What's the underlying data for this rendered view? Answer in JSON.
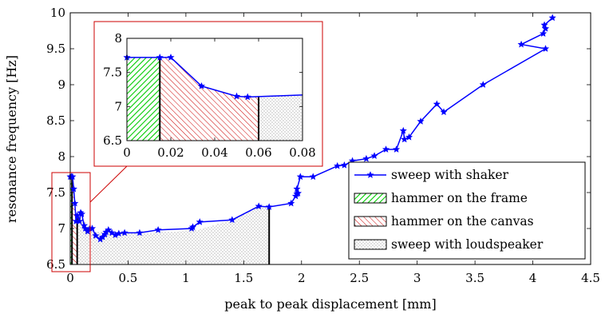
{
  "chart_data": {
    "type": "line",
    "xlabel": "peak to peak displacement [mm]",
    "ylabel": "resonance frequency [Hz]",
    "xlim": [
      0,
      4.5
    ],
    "ylim": [
      6.5,
      10
    ],
    "xticks": [
      0,
      0.5,
      1,
      1.5,
      2,
      2.5,
      3,
      3.5,
      4,
      4.5
    ],
    "yticks": [
      6.5,
      7,
      7.5,
      8,
      8.5,
      9,
      9.5,
      10
    ],
    "xtick_labels": [
      "0",
      "0.5",
      "1",
      "1.5",
      "2",
      "2.5",
      "3",
      "3.5",
      "4",
      "4.5"
    ],
    "ytick_labels": [
      "6.5",
      "7",
      "7.5",
      "8",
      "8.5",
      "9",
      "9.5",
      "10"
    ],
    "legend_position": "bottom-right",
    "legend": [
      {
        "label": "sweep with shaker",
        "kind": "line",
        "color": "#0000ff"
      },
      {
        "label": "hammer on the frame",
        "kind": "hatch-green"
      },
      {
        "label": "hammer on the canvas",
        "kind": "hatch-red"
      },
      {
        "label": "sweep with loudspeaker",
        "kind": "dots"
      }
    ],
    "colors": {
      "shaker": "#0000ff",
      "frame": "#00cc00",
      "canvas": "#cc0000",
      "loudspeaker": "#808080"
    },
    "shaker_series": {
      "x": [
        4.17,
        4.1,
        4.11,
        4.09,
        3.9,
        4.11,
        3.57,
        3.23,
        3.17,
        3.03,
        2.93,
        2.89,
        2.88,
        2.82,
        2.73,
        2.63,
        2.56,
        2.44,
        2.37,
        2.31,
        2.1,
        1.99,
        1.96,
        1.95,
        1.97,
        1.96,
        1.91,
        1.72,
        1.63,
        1.4,
        1.12,
        1.06,
        1.05,
        0.76,
        0.6,
        0.47,
        0.42,
        0.39,
        0.36,
        0.33,
        0.31,
        0.3,
        0.28,
        0.26,
        0.22,
        0.19,
        0.17,
        0.15,
        0.13,
        0.12,
        0.1,
        0.09,
        0.08,
        0.06,
        0.05,
        0.04,
        0.03,
        0.02,
        0.01,
        0.0
      ],
      "y": [
        9.93,
        9.83,
        9.78,
        9.71,
        9.56,
        9.5,
        9.0,
        8.62,
        8.73,
        8.49,
        8.27,
        8.24,
        8.36,
        8.1,
        8.1,
        8.01,
        7.97,
        7.94,
        7.88,
        7.87,
        7.72,
        7.72,
        7.55,
        7.45,
        7.49,
        7.48,
        7.35,
        7.3,
        7.31,
        7.12,
        7.09,
        7.02,
        7.0,
        6.98,
        6.94,
        6.94,
        6.93,
        6.91,
        6.94,
        6.98,
        6.95,
        6.92,
        6.88,
        6.85,
        6.9,
        7.0,
        7.0,
        6.96,
        7.0,
        7.04,
        7.2,
        7.22,
        7.1,
        7.18,
        7.1,
        7.35,
        7.55,
        7.72,
        7.72,
        7.72
      ]
    },
    "frame_region": {
      "x": [
        0,
        0.015
      ],
      "y_top": 7.72
    },
    "canvas_region": {
      "x": [
        0.015,
        0.02,
        0.034,
        0.05,
        0.055,
        0.06
      ],
      "y": [
        7.72,
        7.72,
        7.3,
        7.15,
        7.14,
        7.14
      ]
    },
    "loudspeaker_region": {
      "x": [
        0.06,
        0.08,
        0.13,
        0.2,
        0.3,
        0.45,
        0.6,
        0.8,
        1.1,
        1.4,
        1.6,
        1.72
      ],
      "y": [
        7.14,
        7.18,
        7.1,
        6.95,
        6.95,
        6.93,
        6.93,
        6.95,
        6.98,
        7.12,
        7.3,
        7.3
      ]
    },
    "inset": {
      "xlim": [
        0,
        0.08
      ],
      "ylim": [
        6.5,
        8
      ],
      "xticks": [
        0,
        0.02,
        0.04,
        0.06,
        0.08
      ],
      "yticks": [
        6.5,
        7,
        7.5,
        8
      ],
      "xtick_labels": [
        "0",
        "0.02",
        "0.04",
        "0.06",
        "0.08"
      ],
      "ytick_labels": [
        "6.5",
        "7",
        "7.5",
        "8"
      ],
      "shaker_series": {
        "x": [
          0,
          0.015,
          0.02,
          0.034,
          0.05,
          0.055,
          0.08
        ],
        "y": [
          7.72,
          7.72,
          7.72,
          7.3,
          7.15,
          7.14,
          7.17
        ]
      },
      "loudspeaker_region": {
        "x": [
          0.06,
          0.08
        ],
        "y": [
          7.14,
          7.17
        ]
      },
      "zoom_box": {
        "xlim": [
          0,
          0.17
        ],
        "ylim": [
          6.5,
          7.72
        ]
      }
    }
  }
}
